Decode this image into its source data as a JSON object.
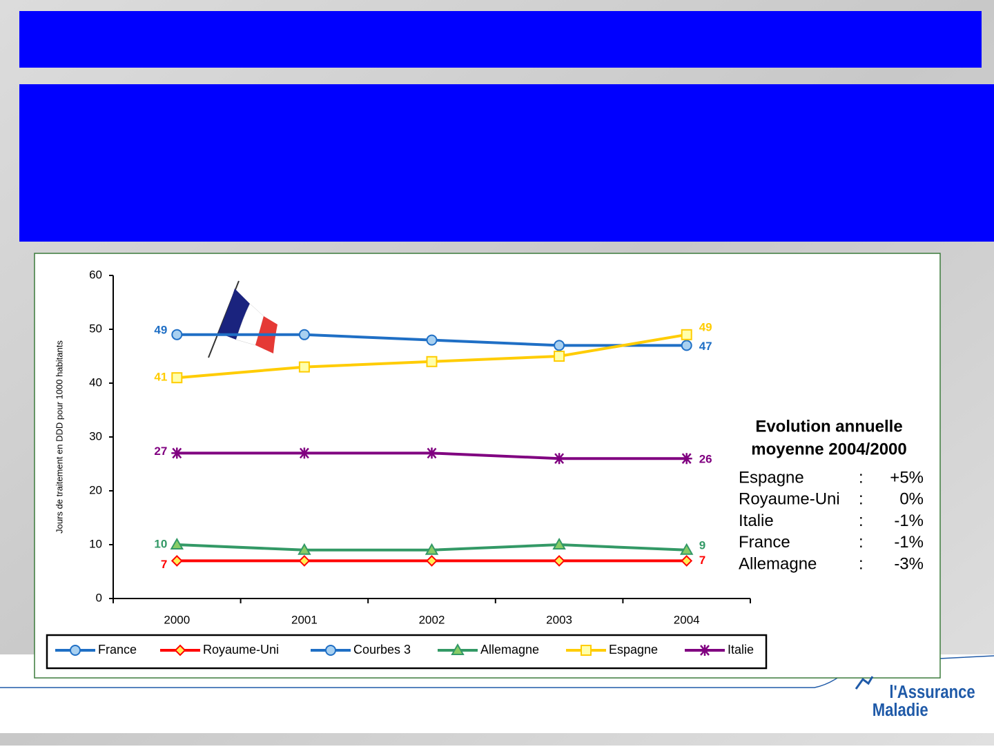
{
  "chart_data": {
    "type": "line",
    "y_label": "Jours de traitement en DDD pour 1000 habitants",
    "categories": [
      "2000",
      "2001",
      "2002",
      "2003",
      "2004"
    ],
    "ylim": [
      0,
      60
    ],
    "yticks": [
      0,
      10,
      20,
      30,
      40,
      50,
      60
    ],
    "series": [
      {
        "name": "France",
        "color": "#1f6fc5",
        "marker": "circle",
        "values": [
          49,
          49,
          48,
          47,
          47
        ]
      },
      {
        "name": "Royaume-Uni",
        "color": "#ff0000",
        "marker": "diamond",
        "values": [
          7,
          7,
          7,
          7,
          7
        ]
      },
      {
        "name": "Courbes 3",
        "color": "#1f6fc5",
        "marker": "circle",
        "values": [
          null,
          null,
          null,
          null,
          null
        ]
      },
      {
        "name": "Allemagne",
        "color": "#339966",
        "marker": "triangle",
        "values": [
          10,
          9,
          9,
          10,
          9
        ]
      },
      {
        "name": "Espagne",
        "color": "#ffcc00",
        "marker": "square",
        "values": [
          41,
          43,
          44,
          45,
          49
        ]
      },
      {
        "name": "Italie",
        "color": "#800080",
        "marker": "asterisk",
        "values": [
          27,
          27,
          27,
          26,
          26
        ]
      }
    ]
  },
  "summary": {
    "title_lines": [
      "Evolution annuelle",
      "moyenne 2004/2000"
    ],
    "rows": [
      {
        "name": "Espagne",
        "value": "+5%"
      },
      {
        "name": "Royaume-Uni",
        "value": "0%"
      },
      {
        "name": "Italie",
        "value": "-1%"
      },
      {
        "name": "France",
        "value": "-1%"
      },
      {
        "name": "Allemagne",
        "value": "-3%"
      }
    ]
  },
  "logo": {
    "line1": "l'Assurance",
    "line2": "Maladie"
  }
}
